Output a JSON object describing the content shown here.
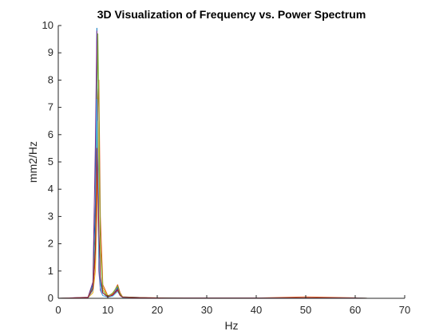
{
  "chart_data": {
    "type": "line",
    "title": "3D Visualization of Frequency vs. Power Spectrum",
    "xlabel": "Hz",
    "ylabel": "mm2/Hz",
    "xlim": [
      0,
      70
    ],
    "ylim": [
      0,
      10
    ],
    "x_ticks": [
      "0",
      "10",
      "20",
      "30",
      "40",
      "50",
      "60",
      "70"
    ],
    "y_ticks": [
      "0",
      "1",
      "2",
      "3",
      "4",
      "5",
      "6",
      "7",
      "8",
      "9",
      "10"
    ],
    "grid": false,
    "legend": "none",
    "x": [
      0,
      6,
      7,
      7.5,
      7.8,
      8.0,
      8.2,
      8.5,
      9,
      10,
      11,
      12,
      12.5,
      13,
      15,
      18,
      22,
      30,
      40,
      50,
      60,
      62.5
    ],
    "series": [
      {
        "color": "#0072BD",
        "values": [
          0,
          0.03,
          0.5,
          3.5,
          9.9,
          6.0,
          2.0,
          0.6,
          0.2,
          0.05,
          0.1,
          0.4,
          0.15,
          0.05,
          0.04,
          0.02,
          0.01,
          0.01,
          0.01,
          0.01,
          0.01,
          0
        ]
      },
      {
        "color": "#D95319",
        "values": [
          0,
          0.03,
          0.3,
          1.5,
          4.0,
          7.0,
          8.0,
          3.0,
          0.5,
          0.1,
          0.15,
          0.5,
          0.2,
          0.05,
          0.03,
          0.02,
          0.01,
          0.01,
          0.01,
          0.05,
          0.02,
          0
        ]
      },
      {
        "color": "#EDB120",
        "values": [
          0,
          0.02,
          0.2,
          1.0,
          3.0,
          6.5,
          5.0,
          2.0,
          0.4,
          0.08,
          0.1,
          0.3,
          0.1,
          0.04,
          0.03,
          0.02,
          0.01,
          0.01,
          0.01,
          0.01,
          0.01,
          0
        ]
      },
      {
        "color": "#7E2F8E",
        "values": [
          0,
          0.04,
          0.6,
          5.7,
          9.8,
          4.0,
          1.0,
          0.3,
          0.1,
          0.05,
          0.1,
          0.35,
          0.12,
          0.04,
          0.03,
          0.02,
          0.01,
          0.01,
          0.01,
          0.01,
          0.01,
          0
        ]
      },
      {
        "color": "#77AC30",
        "values": [
          0,
          0.03,
          0.4,
          2.3,
          6.0,
          9.7,
          7.0,
          1.8,
          0.3,
          0.06,
          0.2,
          0.45,
          0.15,
          0.05,
          0.04,
          0.02,
          0.02,
          0.01,
          0.01,
          0.01,
          0.01,
          0
        ]
      },
      {
        "color": "#4DBEEE",
        "values": [
          0,
          0.02,
          0.3,
          2.0,
          7.3,
          5.0,
          1.5,
          0.4,
          0.1,
          0.04,
          0.08,
          0.25,
          0.1,
          0.03,
          0.02,
          0.01,
          0.01,
          0.01,
          0.01,
          0.01,
          0.01,
          0
        ]
      },
      {
        "color": "#A2142F",
        "values": [
          0,
          0.03,
          0.35,
          1.8,
          5.5,
          4.0,
          2.5,
          0.8,
          0.2,
          0.05,
          0.12,
          0.3,
          0.1,
          0.04,
          0.03,
          0.02,
          0.01,
          0.01,
          0.01,
          0.01,
          0.01,
          0
        ]
      }
    ]
  }
}
